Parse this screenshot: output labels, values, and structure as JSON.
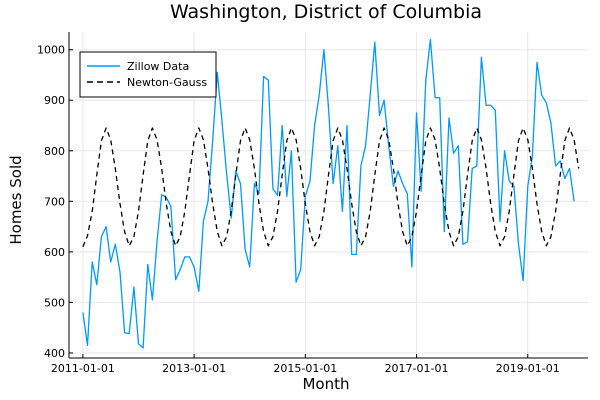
{
  "chart_data": {
    "type": "line",
    "title": "Washington, District of Columbia",
    "xlabel": "Month",
    "ylabel": "Homes Sold",
    "x_ticks": [
      "2011-01-01",
      "2013-01-01",
      "2015-01-01",
      "2017-01-01",
      "2019-01-01"
    ],
    "y_ticks": [
      400,
      500,
      600,
      700,
      800,
      900,
      1000
    ],
    "xlim": [
      "2010-10-01",
      "2020-02-01"
    ],
    "ylim": [
      390,
      1035
    ],
    "grid": true,
    "legend_position": "top-left",
    "start_month": "2011-01",
    "series": [
      {
        "name": "Zillow Data",
        "color": "#009af9",
        "style": "solid",
        "values": [
          480,
          415,
          580,
          535,
          630,
          650,
          580,
          615,
          560,
          440,
          438,
          530,
          418,
          410,
          575,
          505,
          620,
          713,
          708,
          690,
          545,
          565,
          590,
          590,
          570,
          522,
          660,
          700,
          820,
          955,
          860,
          755,
          667,
          760,
          735,
          605,
          570,
          735,
          715,
          947,
          940,
          725,
          712,
          850,
          710,
          800,
          540,
          565,
          710,
          740,
          850,
          910,
          1000,
          885,
          735,
          810,
          680,
          850,
          595,
          595,
          770,
          810,
          910,
          1015,
          870,
          900,
          810,
          730,
          760,
          735,
          715,
          570,
          875,
          720,
          940,
          1020,
          905,
          905,
          640,
          865,
          795,
          810,
          615,
          620,
          765,
          770,
          985,
          890,
          890,
          880,
          660,
          800,
          740,
          730,
          615,
          543,
          730,
          790,
          975,
          910,
          895,
          855,
          770,
          780,
          745,
          765,
          700
        ]
      },
      {
        "name": "Newton-Gauss",
        "color": "#000000",
        "style": "dashed",
        "values": [
          610,
          632,
          680,
          752,
          820,
          845,
          822,
          765,
          695,
          640,
          612,
          630,
          680,
          752,
          820,
          845,
          822,
          765,
          695,
          640,
          612,
          630,
          680,
          752,
          820,
          845,
          822,
          765,
          695,
          640,
          612,
          630,
          680,
          752,
          820,
          845,
          822,
          765,
          695,
          640,
          612,
          630,
          680,
          752,
          820,
          845,
          822,
          765,
          695,
          640,
          612,
          630,
          680,
          752,
          820,
          845,
          822,
          765,
          695,
          640,
          612,
          630,
          680,
          752,
          820,
          845,
          822,
          765,
          695,
          640,
          612,
          630,
          680,
          752,
          820,
          845,
          822,
          765,
          695,
          640,
          612,
          630,
          680,
          752,
          820,
          845,
          822,
          765,
          695,
          640,
          612,
          630,
          680,
          752,
          820,
          845,
          822,
          765,
          695,
          640,
          612,
          630,
          680,
          752,
          820,
          845,
          822,
          765
        ]
      }
    ]
  }
}
